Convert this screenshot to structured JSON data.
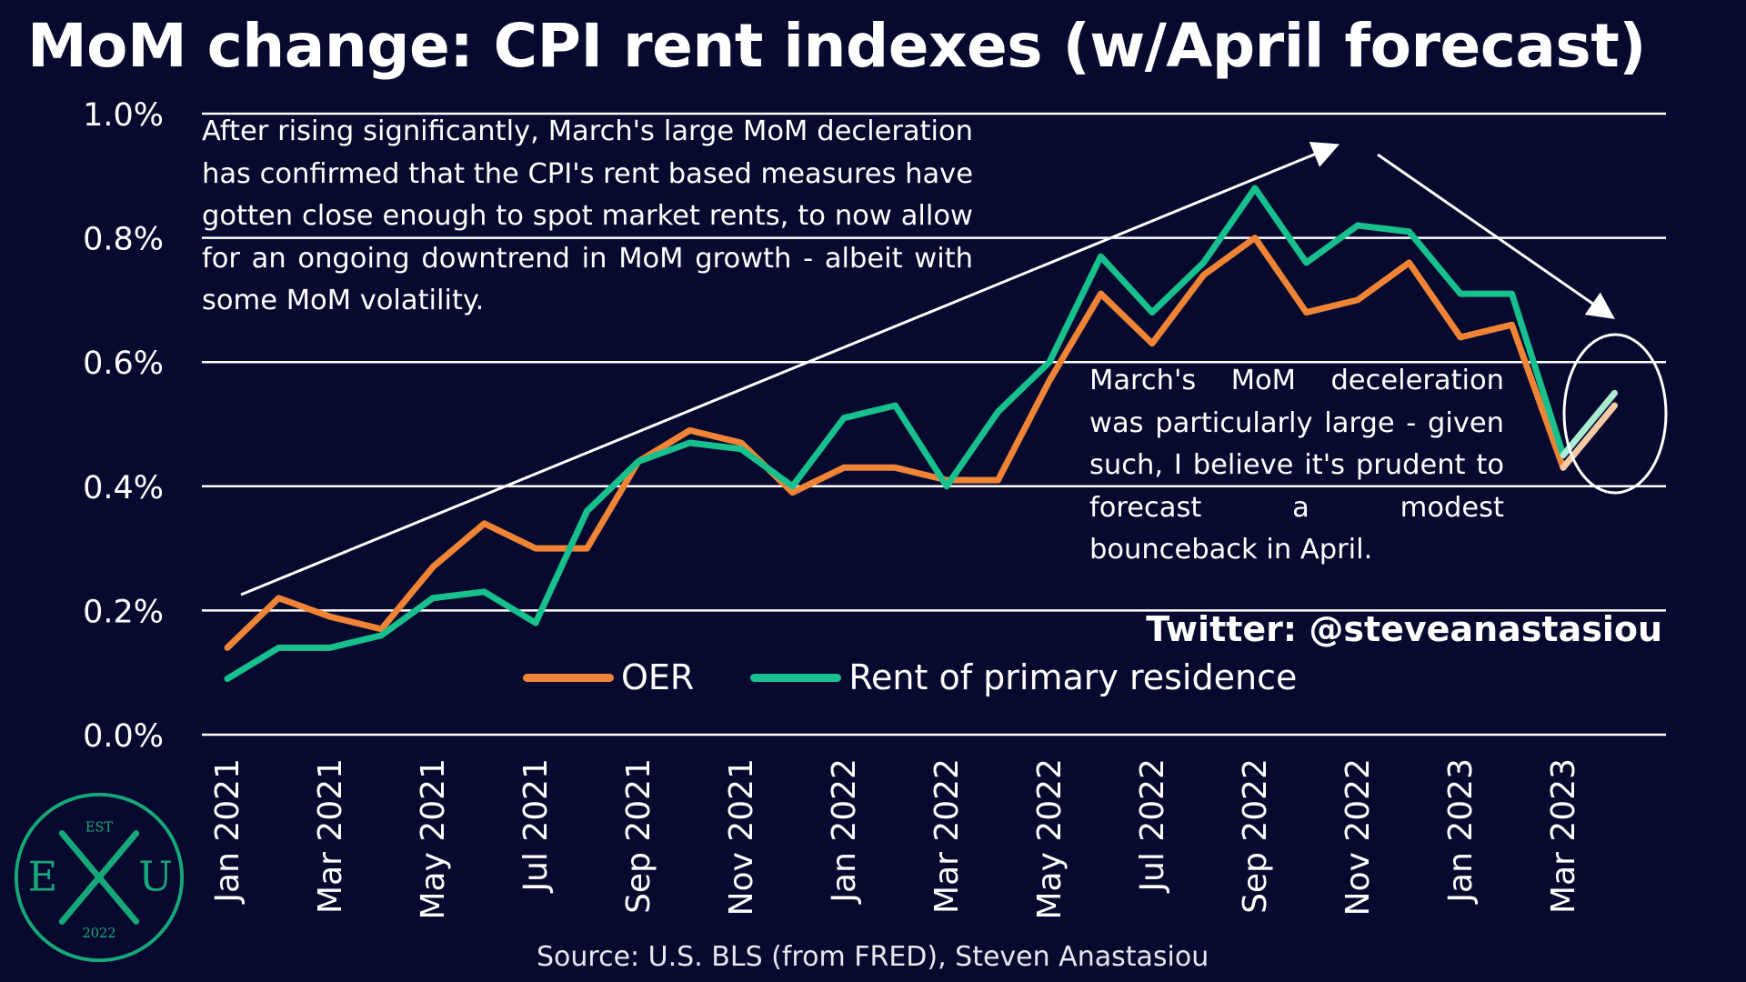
{
  "title": "MoM change: CPI rent indexes (w/April forecast)",
  "annotation_main": "After rising significantly, March's large MoM decleration has confirmed that the CPI's rent based measures have gotten close enough to spot market rents, to now allow for an ongoing downtrend in MoM growth - albeit with some MoM volatility.",
  "annotation_forecast": "March's MoM deceleration was particularly large - given such, I believe it's prudent to forecast a modest bounceback in April.",
  "twitter": "Twitter: @steveanastasiou",
  "source": "Source: U.S. BLS (from FRED), Steven Anastasiou",
  "logo": {
    "top": "EST",
    "left": "E",
    "right": "U",
    "bottom": "2022"
  },
  "colors": {
    "background": "#070a2e",
    "oer": "#f08436",
    "rent": "#17c08c",
    "forecast_oer": "#f5c9a6",
    "forecast_rent": "#a9ecd2",
    "grid": "#ffffff"
  },
  "chart_data": {
    "type": "line",
    "title": "MoM change: CPI rent indexes (w/April forecast)",
    "xlabel": "",
    "ylabel": "",
    "ylim": [
      0,
      1.0
    ],
    "y_ticks": [
      "0.0%",
      "0.2%",
      "0.4%",
      "0.6%",
      "0.8%",
      "1.0%"
    ],
    "y_tick_values": [
      0,
      0.2,
      0.4,
      0.6,
      0.8,
      1.0
    ],
    "grid": "horizontal",
    "legend": "bottom-center",
    "x": [
      "Jan 2021",
      "Feb 2021",
      "Mar 2021",
      "Apr 2021",
      "May 2021",
      "Jun 2021",
      "Jul 2021",
      "Aug 2021",
      "Sep 2021",
      "Oct 2021",
      "Nov 2021",
      "Dec 2021",
      "Jan 2022",
      "Feb 2022",
      "Mar 2022",
      "Apr 2022",
      "May 2022",
      "Jun 2022",
      "Jul 2022",
      "Aug 2022",
      "Sep 2022",
      "Oct 2022",
      "Nov 2022",
      "Dec 2022",
      "Jan 2023",
      "Feb 2023",
      "Mar 2023",
      "Apr 2023"
    ],
    "x_tick_labels": [
      "Jan 2021",
      "Mar 2021",
      "May 2021",
      "Jul 2021",
      "Sep 2021",
      "Nov 2021",
      "Jan 2022",
      "Mar 2022",
      "May 2022",
      "Jul 2022",
      "Sep 2022",
      "Nov 2022",
      "Jan 2023",
      "Mar 2023"
    ],
    "series": [
      {
        "name": "OER",
        "values": [
          0.14,
          0.22,
          0.19,
          0.17,
          0.27,
          0.34,
          0.3,
          0.3,
          0.44,
          0.49,
          0.47,
          0.39,
          0.43,
          0.43,
          0.41,
          0.41,
          0.57,
          0.71,
          0.63,
          0.74,
          0.8,
          0.68,
          0.7,
          0.76,
          0.64,
          0.66,
          0.43,
          0.53
        ]
      },
      {
        "name": "Rent of primary residence",
        "values": [
          0.09,
          0.14,
          0.14,
          0.16,
          0.22,
          0.23,
          0.18,
          0.36,
          0.44,
          0.47,
          0.46,
          0.4,
          0.51,
          0.53,
          0.4,
          0.52,
          0.6,
          0.77,
          0.68,
          0.76,
          0.88,
          0.76,
          0.82,
          0.81,
          0.71,
          0.71,
          0.45,
          0.55
        ]
      }
    ],
    "forecast_index": 27
  }
}
